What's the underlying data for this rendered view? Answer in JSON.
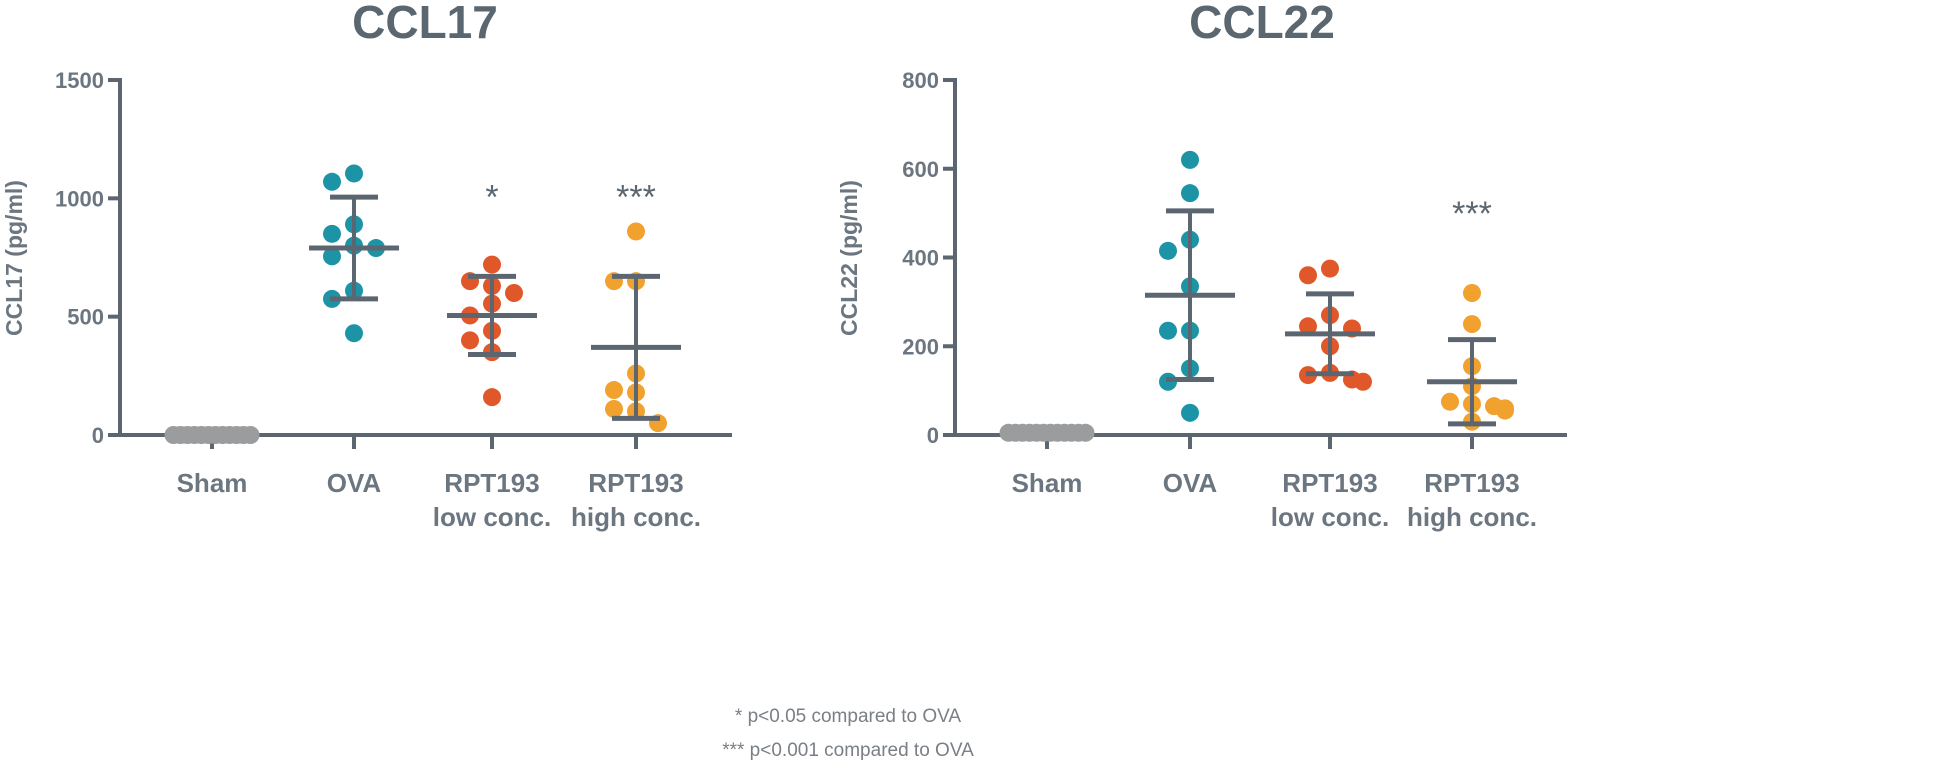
{
  "colors": {
    "axis": "#5b6670",
    "sham": "#9a9c9e",
    "ova": "#1d93a6",
    "low": "#e0582a",
    "high": "#f0a12e",
    "text": "#6b7680"
  },
  "footnotes": [
    "* p<0.05 compared to OVA",
    "*** p<0.001 compared to OVA"
  ],
  "chart_data": [
    {
      "type": "scatter",
      "subtype": "dot plot with mean ± SD",
      "title": "CCL17",
      "ylabel": "CCL17 (pg/ml)",
      "xlabel": "",
      "ylim": [
        0,
        1500
      ],
      "yticks": [
        0,
        500,
        1000,
        1500
      ],
      "grid": false,
      "categories": [
        {
          "line1": "Sham",
          "line2": ""
        },
        {
          "line1": "OVA",
          "line2": ""
        },
        {
          "line1": "RPT193",
          "line2": "low conc."
        },
        {
          "line1": "RPT193",
          "line2": "high conc."
        }
      ],
      "series": [
        {
          "name": "Sham",
          "color_key": "sham",
          "values": [
            0,
            0,
            0,
            0,
            0,
            0,
            0,
            0,
            0,
            0,
            0,
            0
          ],
          "mean": 0,
          "sd_upper": 0,
          "sd_lower": 0,
          "significance": ""
        },
        {
          "name": "OVA",
          "color_key": "ova",
          "values": [
            1105,
            1070,
            890,
            850,
            800,
            790,
            755,
            610,
            575,
            430
          ],
          "mean": 790,
          "sd_upper": 1005,
          "sd_lower": 575,
          "significance": ""
        },
        {
          "name": "RPT193 low conc.",
          "color_key": "low",
          "values": [
            720,
            650,
            630,
            600,
            555,
            505,
            440,
            400,
            350,
            160
          ],
          "mean": 505,
          "sd_upper": 670,
          "sd_lower": 340,
          "significance": "*"
        },
        {
          "name": "RPT193 high conc.",
          "color_key": "high",
          "values": [
            860,
            650,
            650,
            260,
            190,
            180,
            110,
            100,
            50
          ],
          "mean": 370,
          "sd_upper": 670,
          "sd_lower": 70,
          "significance": "***"
        }
      ]
    },
    {
      "type": "scatter",
      "subtype": "dot plot with mean ± SD",
      "title": "CCL22",
      "ylabel": "CCL22 (pg/ml)",
      "xlabel": "",
      "ylim": [
        0,
        800
      ],
      "yticks": [
        0,
        200,
        400,
        600,
        800
      ],
      "grid": false,
      "categories": [
        {
          "line1": "Sham",
          "line2": ""
        },
        {
          "line1": "OVA",
          "line2": ""
        },
        {
          "line1": "RPT193",
          "line2": "low conc."
        },
        {
          "line1": "RPT193",
          "line2": "high conc."
        }
      ],
      "series": [
        {
          "name": "Sham",
          "color_key": "sham",
          "values": [
            5,
            5,
            5,
            5,
            5,
            5,
            5,
            5,
            5,
            5,
            5,
            5
          ],
          "mean": 5,
          "sd_upper": 5,
          "sd_lower": 5,
          "significance": ""
        },
        {
          "name": "OVA",
          "color_key": "ova",
          "values": [
            620,
            545,
            440,
            415,
            335,
            235,
            235,
            150,
            120,
            50
          ],
          "mean": 315,
          "sd_upper": 505,
          "sd_lower": 125,
          "significance": ""
        },
        {
          "name": "RPT193 low conc.",
          "color_key": "low",
          "values": [
            375,
            360,
            270,
            245,
            240,
            200,
            140,
            135,
            125,
            120
          ],
          "mean": 228,
          "sd_upper": 318,
          "sd_lower": 138,
          "significance": ""
        },
        {
          "name": "RPT193 high conc.",
          "color_key": "high",
          "values": [
            320,
            250,
            155,
            110,
            75,
            70,
            65,
            60,
            55,
            30
          ],
          "mean": 120,
          "sd_upper": 215,
          "sd_lower": 25,
          "significance": "***"
        }
      ]
    }
  ]
}
